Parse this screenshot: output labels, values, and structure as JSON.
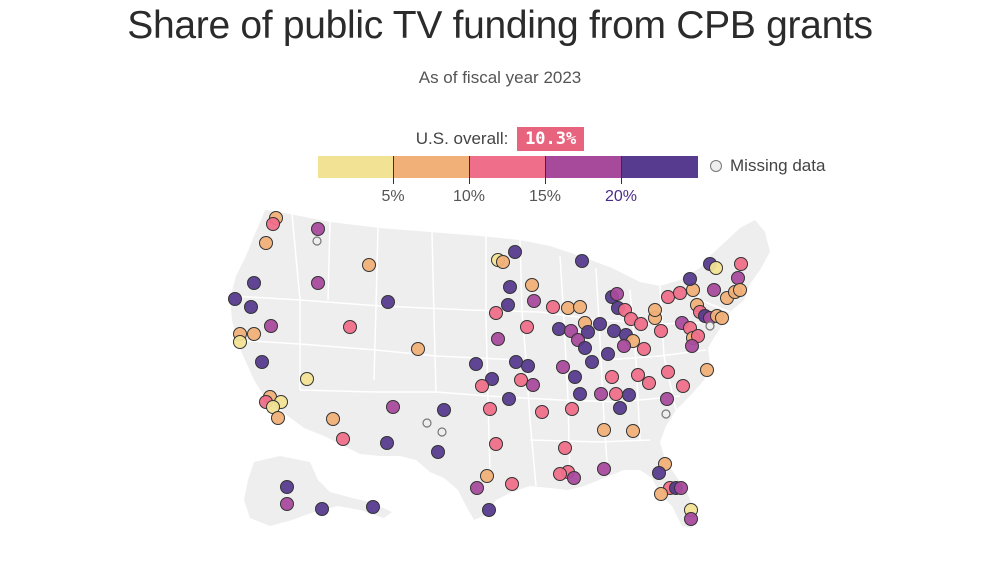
{
  "title": "Share of public TV funding from CPB grants",
  "subtitle": "As of fiscal year 2023",
  "overall": {
    "label": "U.S. overall:",
    "value": "10.3%"
  },
  "legend": {
    "colors": [
      "#f2e394",
      "#f0b077",
      "#ef6f8a",
      "#a84a9c",
      "#563b8e"
    ],
    "ticks": [
      "5%",
      "10%",
      "15%",
      "20%"
    ],
    "missing_label": "Missing data",
    "missing_color": "#eeeeee"
  },
  "map": {
    "land_color": "#eeeeee",
    "border_color": "#ffffff"
  }
}
